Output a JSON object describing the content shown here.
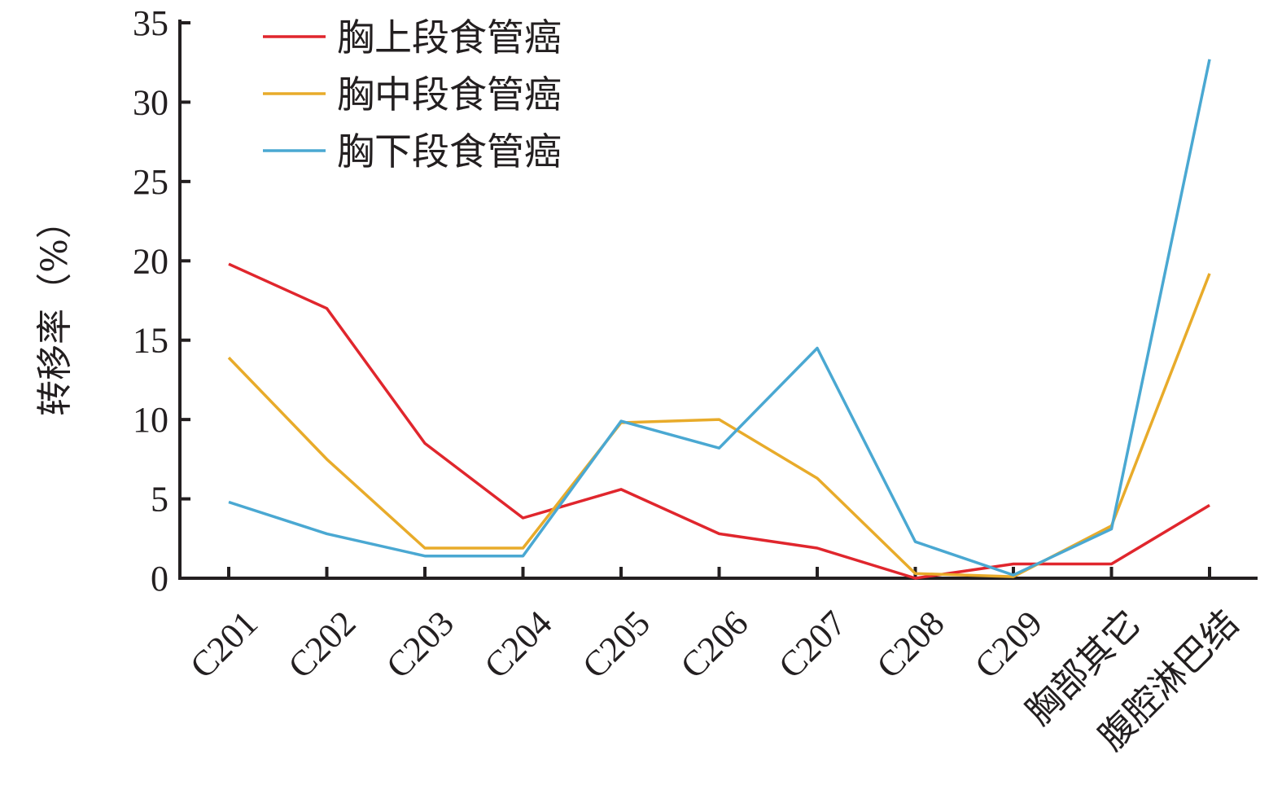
{
  "chart_data": {
    "type": "line",
    "categories": [
      "C201",
      "C202",
      "C203",
      "C204",
      "C205",
      "C206",
      "C207",
      "C208",
      "C209",
      "胸部其它",
      "腹腔淋巴结"
    ],
    "series": [
      {
        "name": "胸上段食管癌",
        "color": "#e0262d",
        "values": [
          19.8,
          17.0,
          8.5,
          3.8,
          5.6,
          2.8,
          1.9,
          0.0,
          0.9,
          0.9,
          4.6
        ]
      },
      {
        "name": "胸中段食管癌",
        "color": "#e8ab2a",
        "values": [
          13.9,
          7.5,
          1.9,
          1.9,
          9.8,
          10.0,
          6.3,
          0.3,
          0.1,
          3.3,
          19.2
        ]
      },
      {
        "name": "胸下段食管癌",
        "color": "#4aa8d2",
        "values": [
          4.8,
          2.8,
          1.4,
          1.4,
          9.9,
          8.2,
          14.5,
          2.3,
          0.2,
          3.1,
          32.7
        ]
      }
    ],
    "ylabel": "转移率（%）",
    "xlabel": "",
    "title": "",
    "ylim": [
      0,
      35
    ],
    "yticks": [
      0,
      5,
      10,
      15,
      20,
      25,
      30,
      35
    ],
    "grid": false,
    "legend_position": "top-left"
  }
}
